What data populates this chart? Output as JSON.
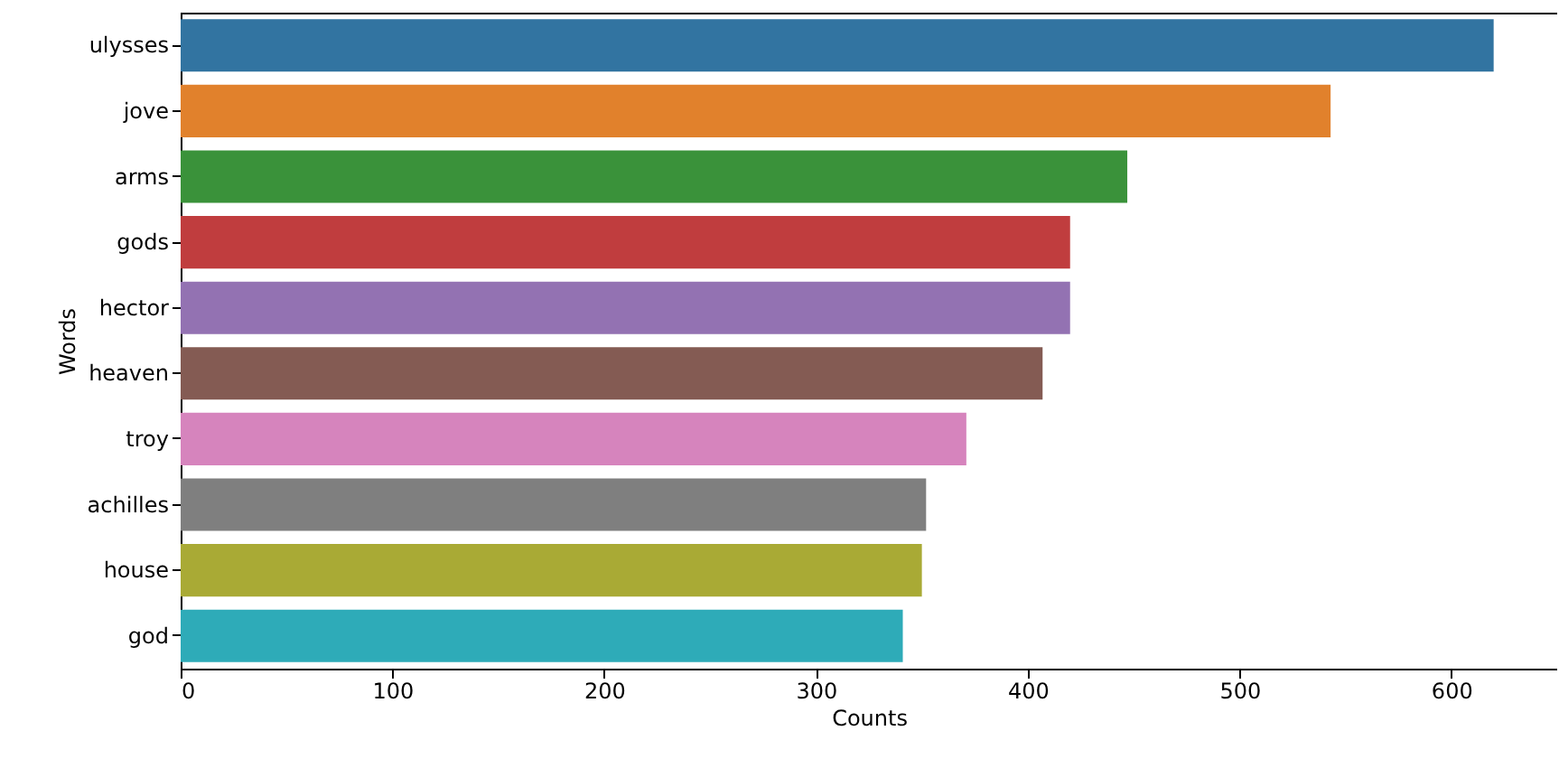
{
  "chart_data": {
    "type": "bar",
    "orientation": "horizontal",
    "xlabel": "Counts",
    "ylabel": "Words",
    "categories": [
      "ulysses",
      "jove",
      "arms",
      "gods",
      "hector",
      "heaven",
      "troy",
      "achilles",
      "house",
      "god"
    ],
    "values": [
      620,
      543,
      447,
      420,
      420,
      407,
      371,
      352,
      350,
      341
    ],
    "colors": [
      "#3274a1",
      "#e1812c",
      "#3a923a",
      "#c03d3e",
      "#9372b2",
      "#845b53",
      "#d684bd",
      "#7f7f7f",
      "#a9aa35",
      "#2eabb8"
    ],
    "xlim": [
      0,
      650
    ],
    "xticks": [
      0,
      100,
      200,
      300,
      400,
      500,
      600
    ],
    "grid": false
  }
}
